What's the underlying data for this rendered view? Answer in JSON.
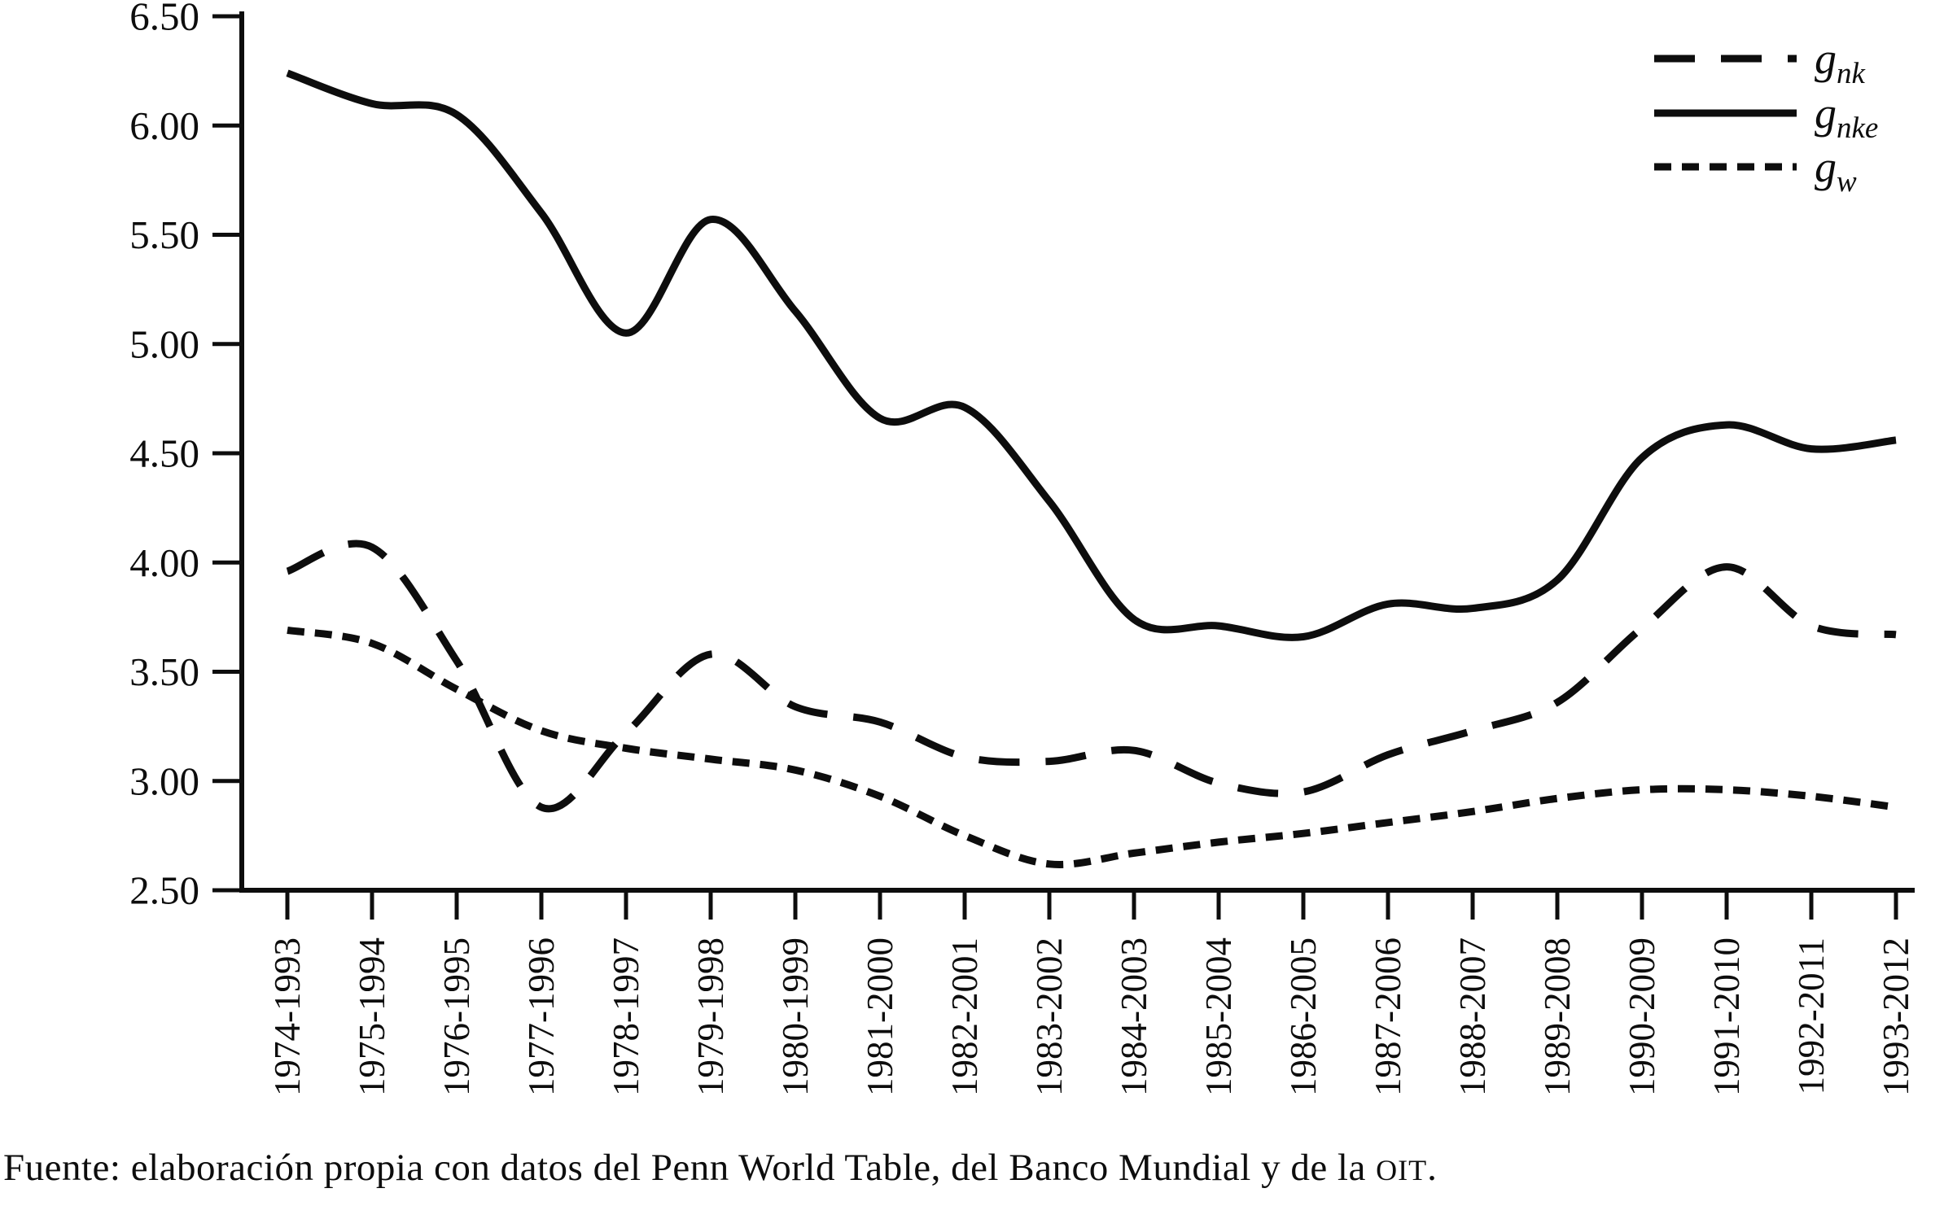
{
  "chart_data": {
    "type": "line",
    "title": "",
    "xlabel": "",
    "ylabel": "",
    "grid": false,
    "legend_position": "top-right",
    "line_color": "#0d0d0d",
    "ylim": [
      2.5,
      6.5
    ],
    "ytick_step": 0.5,
    "ytick_labels": [
      "2.50",
      "3.00",
      "3.50",
      "4.00",
      "4.50",
      "5.00",
      "5.50",
      "6.00",
      "6.50"
    ],
    "categories": [
      "1974-1993",
      "1975-1994",
      "1976-1995",
      "1977-1996",
      "1978-1997",
      "1979-1998",
      "1980-1999",
      "1981-2000",
      "1982-2001",
      "1983-2002",
      "1984-2003",
      "1985-2004",
      "1986-2005",
      "1987-2006",
      "1988-2007",
      "1989-2008",
      "1990-2009",
      "1991-2010",
      "1992-2011",
      "1993-2012"
    ],
    "series": [
      {
        "name": "g_nk",
        "label_main": "g",
        "label_sub": "nk",
        "style": "long-dash",
        "values": [
          3.96,
          4.07,
          3.55,
          2.88,
          3.22,
          3.58,
          3.34,
          3.27,
          3.11,
          3.09,
          3.14,
          2.99,
          2.95,
          3.12,
          3.23,
          3.36,
          3.7,
          3.98,
          3.71,
          3.67
        ]
      },
      {
        "name": "g_nke",
        "label_main": "g",
        "label_sub": "nke",
        "style": "solid",
        "values": [
          6.24,
          6.1,
          6.05,
          5.6,
          5.05,
          5.57,
          5.15,
          4.66,
          4.71,
          4.28,
          3.74,
          3.71,
          3.66,
          3.81,
          3.79,
          3.92,
          4.48,
          4.63,
          4.52,
          4.56
        ]
      },
      {
        "name": "g_w",
        "label_main": "g",
        "label_sub": "w",
        "style": "short-dash",
        "values": [
          3.69,
          3.63,
          3.42,
          3.23,
          3.15,
          3.1,
          3.05,
          2.93,
          2.75,
          2.62,
          2.67,
          2.72,
          2.76,
          2.81,
          2.86,
          2.92,
          2.96,
          2.96,
          2.93,
          2.88
        ]
      }
    ]
  },
  "caption": {
    "prefix": "Fuente: elaboración propia con datos del Penn World Table, del Banco Mundial y de la ",
    "smallcaps": "oit",
    "suffix": "."
  }
}
